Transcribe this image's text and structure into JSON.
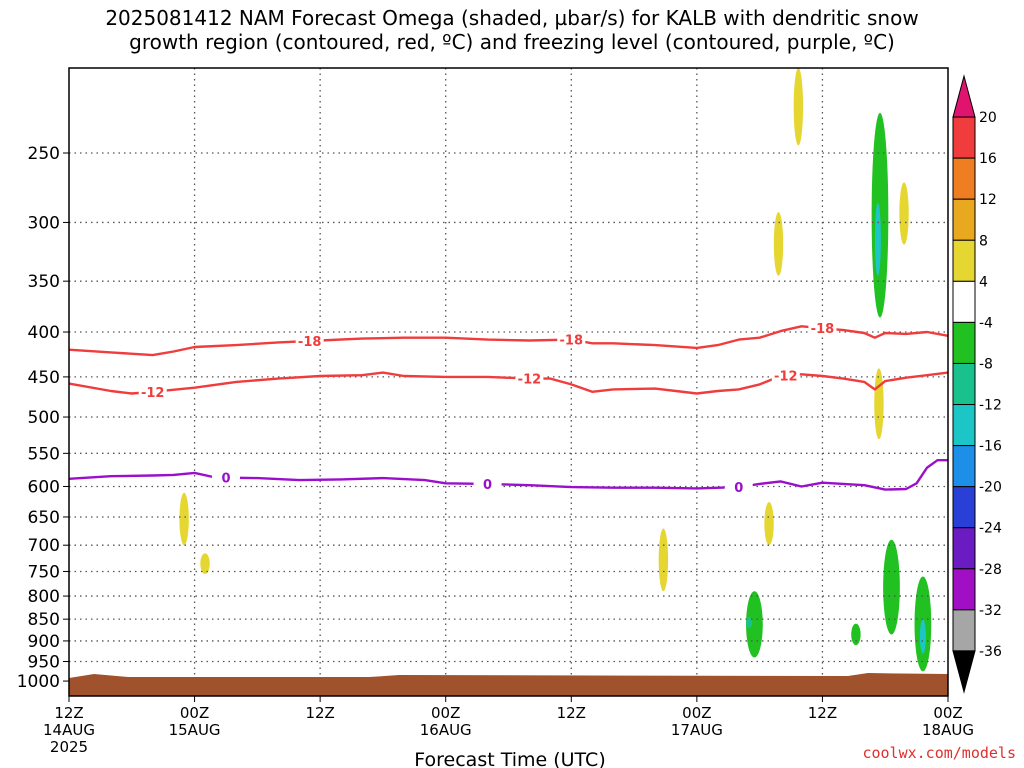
{
  "title_line1": "2025081412 NAM Forecast Omega (shaded, µbar/s) for KALB with dendritic snow",
  "title_line2": "growth region (contoured, red, ºC) and freezing level (contoured, purple, ºC)",
  "watermark": "coolwx.com/models",
  "chart_data": {
    "type": "heatmap",
    "title": "2025081412 NAM Forecast Omega (shaded, µbar/s) for KALB with dendritic snow growth region (contoured, red, ºC) and freezing level (contoured, purple, ºC)",
    "xlabel": "Forecast Time (UTC)",
    "ylabel": "",
    "y_scale": "log-pressure (inverted)",
    "x_range_hours": [
      0,
      84
    ],
    "y_range_mb": [
      1040,
      200
    ],
    "y_ticks": [
      250,
      300,
      350,
      400,
      450,
      500,
      550,
      600,
      650,
      700,
      750,
      800,
      850,
      900,
      950,
      1000
    ],
    "x_ticks": [
      {
        "hour": 0,
        "label": "12Z",
        "sublabel": "14AUG",
        "year": "2025"
      },
      {
        "hour": 12,
        "label": "00Z",
        "sublabel": "15AUG"
      },
      {
        "hour": 24,
        "label": "12Z",
        "sublabel": ""
      },
      {
        "hour": 36,
        "label": "00Z",
        "sublabel": "16AUG"
      },
      {
        "hour": 48,
        "label": "12Z",
        "sublabel": ""
      },
      {
        "hour": 60,
        "label": "00Z",
        "sublabel": "17AUG"
      },
      {
        "hour": 72,
        "label": "12Z",
        "sublabel": ""
      },
      {
        "hour": 84,
        "label": "00Z",
        "sublabel": "18AUG"
      }
    ],
    "grid": true,
    "colorbar": {
      "levels": [
        20,
        16,
        12,
        8,
        4,
        -4,
        -8,
        -12,
        -16,
        -20,
        -24,
        -28,
        -32,
        -36
      ],
      "bands": [
        {
          "color": "#e0136e",
          "between": "above 20"
        },
        {
          "color": "#f03c3c",
          "between": "16 to 20"
        },
        {
          "color": "#ef7d22",
          "between": "12 to 16"
        },
        {
          "color": "#e8a81f",
          "between": "8 to 12"
        },
        {
          "color": "#e6d632",
          "between": "4 to 8"
        },
        {
          "color": "#ffffff",
          "between": "-4 to 4"
        },
        {
          "color": "#22c122",
          "between": "-8 to -4"
        },
        {
          "color": "#19c28d",
          "between": "-12 to -8"
        },
        {
          "color": "#1cc6c6",
          "between": "-16 to -12"
        },
        {
          "color": "#1d8fe8",
          "between": "-20 to -16"
        },
        {
          "color": "#2a3fd6",
          "between": "-24 to -20"
        },
        {
          "color": "#6a1bc2",
          "between": "-28 to -24"
        },
        {
          "color": "#a10fc4",
          "between": "-32 to -28"
        },
        {
          "color": "#a6a6a6",
          "between": "-36 to -32"
        },
        {
          "color": "#000000",
          "between": "below -36"
        }
      ]
    },
    "contours": [
      {
        "label": "-18",
        "color": "#f03c3c",
        "points": [
          [
            0,
            419
          ],
          [
            4,
            422
          ],
          [
            8,
            425
          ],
          [
            10,
            421
          ],
          [
            12,
            416
          ],
          [
            16,
            414
          ],
          [
            20,
            411
          ],
          [
            24,
            409
          ],
          [
            28,
            407
          ],
          [
            32,
            406
          ],
          [
            36,
            406
          ],
          [
            40,
            408
          ],
          [
            44,
            409
          ],
          [
            48,
            408
          ],
          [
            50,
            412
          ],
          [
            52,
            412
          ],
          [
            56,
            414
          ],
          [
            60,
            417
          ],
          [
            62,
            414
          ],
          [
            64,
            408
          ],
          [
            66,
            406
          ],
          [
            68,
            399
          ],
          [
            70,
            394
          ],
          [
            72,
            396
          ],
          [
            74,
            398
          ],
          [
            76,
            401
          ],
          [
            77,
            406
          ],
          [
            78,
            401
          ],
          [
            80,
            402
          ],
          [
            82,
            400
          ],
          [
            84,
            404
          ]
        ]
      },
      {
        "label": "-12",
        "color": "#f03c3c",
        "points": [
          [
            0,
            458
          ],
          [
            4,
            467
          ],
          [
            6,
            470
          ],
          [
            8,
            468
          ],
          [
            12,
            463
          ],
          [
            16,
            456
          ],
          [
            20,
            452
          ],
          [
            24,
            449
          ],
          [
            28,
            448
          ],
          [
            30,
            445
          ],
          [
            32,
            449
          ],
          [
            36,
            450
          ],
          [
            40,
            450
          ],
          [
            44,
            452
          ],
          [
            46,
            452
          ],
          [
            48,
            459
          ],
          [
            50,
            468
          ],
          [
            52,
            465
          ],
          [
            56,
            464
          ],
          [
            58,
            467
          ],
          [
            60,
            470
          ],
          [
            62,
            467
          ],
          [
            64,
            465
          ],
          [
            66,
            459
          ],
          [
            68,
            449
          ],
          [
            70,
            447
          ],
          [
            72,
            449
          ],
          [
            74,
            452
          ],
          [
            76,
            456
          ],
          [
            77,
            465
          ],
          [
            78,
            455
          ],
          [
            80,
            451
          ],
          [
            82,
            448
          ],
          [
            84,
            445
          ]
        ]
      },
      {
        "label": "0",
        "color": "#9b0fcc",
        "points": [
          [
            0,
            588
          ],
          [
            4,
            584
          ],
          [
            8,
            583
          ],
          [
            10,
            582
          ],
          [
            12,
            579
          ],
          [
            14,
            586
          ],
          [
            18,
            587
          ],
          [
            22,
            590
          ],
          [
            26,
            589
          ],
          [
            30,
            587
          ],
          [
            34,
            590
          ],
          [
            36,
            595
          ],
          [
            40,
            596
          ],
          [
            44,
            598
          ],
          [
            48,
            601
          ],
          [
            52,
            602
          ],
          [
            56,
            602
          ],
          [
            60,
            603
          ],
          [
            64,
            601
          ],
          [
            66,
            596
          ],
          [
            68,
            592
          ],
          [
            70,
            600
          ],
          [
            72,
            594
          ],
          [
            76,
            598
          ],
          [
            78,
            605
          ],
          [
            80,
            604
          ],
          [
            81,
            595
          ],
          [
            82,
            571
          ],
          [
            83,
            560
          ],
          [
            84,
            560
          ]
        ]
      }
    ],
    "omega_features": [
      {
        "hour": 69.7,
        "p_top": 200,
        "p_bot": 245,
        "value": "4 to 8"
      },
      {
        "hour": 67.8,
        "p_top": 292,
        "p_bot": 345,
        "value": "4 to 8"
      },
      {
        "hour": 77.5,
        "p_top": 225,
        "p_bot": 385,
        "value": "-8 to -4"
      },
      {
        "hour": 77.3,
        "p_top": 285,
        "p_bot": 345,
        "value": "-16 to -12"
      },
      {
        "hour": 79.8,
        "p_top": 270,
        "p_bot": 318,
        "value": "4 to 8"
      },
      {
        "hour": 77.4,
        "p_top": 440,
        "p_bot": 530,
        "value": "4 to 8"
      },
      {
        "hour": 11.0,
        "p_top": 610,
        "p_bot": 700,
        "value": "4 to 8"
      },
      {
        "hour": 13.0,
        "p_top": 715,
        "p_bot": 755,
        "value": "4 to 8"
      },
      {
        "hour": 56.8,
        "p_top": 670,
        "p_bot": 790,
        "value": "4 to 8"
      },
      {
        "hour": 66.9,
        "p_top": 625,
        "p_bot": 700,
        "value": "4 to 8"
      },
      {
        "hour": 65.5,
        "p_top": 790,
        "p_bot": 940,
        "value": "-8 to -4"
      },
      {
        "hour": 65.0,
        "p_top": 845,
        "p_bot": 870,
        "value": "-12 to -8"
      },
      {
        "hour": 75.2,
        "p_top": 860,
        "p_bot": 910,
        "value": "-8 to -4"
      },
      {
        "hour": 78.6,
        "p_top": 690,
        "p_bot": 885,
        "value": "-8 to -4"
      },
      {
        "hour": 81.6,
        "p_top": 760,
        "p_bot": 975,
        "value": "-8 to -4"
      },
      {
        "hour": 81.6,
        "p_top": 850,
        "p_bot": 930,
        "value": "-16 to -12"
      }
    ],
    "surface_fill_color": "#a0522d"
  }
}
